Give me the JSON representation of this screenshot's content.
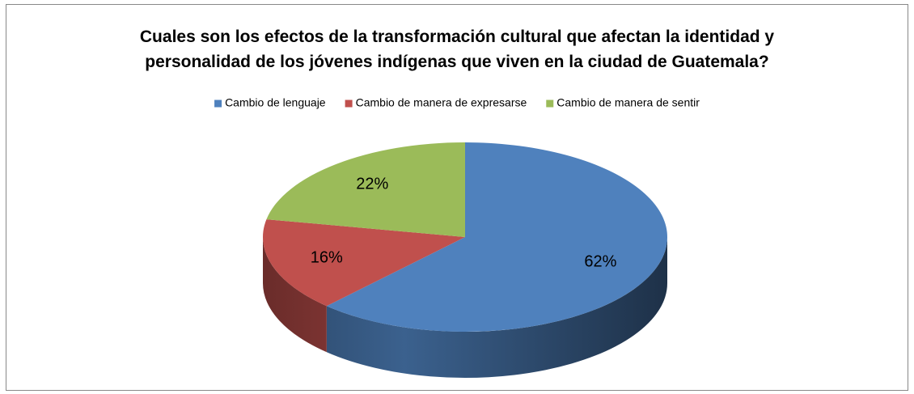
{
  "chart_data": {
    "type": "pie3d",
    "title": "Cuales son los efectos de la transformación cultural que afectan la identidad y\npersonalidad de los jóvenes indígenas que viven en la ciudad de Guatemala?",
    "categories": [
      "Cambio de lenguaje",
      "Cambio de manera de expresarse",
      "Cambio de manera de sentir"
    ],
    "values": [
      62,
      16,
      22
    ],
    "value_labels": [
      "62%",
      "16%",
      "22%"
    ],
    "colors": [
      "#4f81bd",
      "#c0504d",
      "#9bbb59"
    ],
    "legend": "top"
  }
}
